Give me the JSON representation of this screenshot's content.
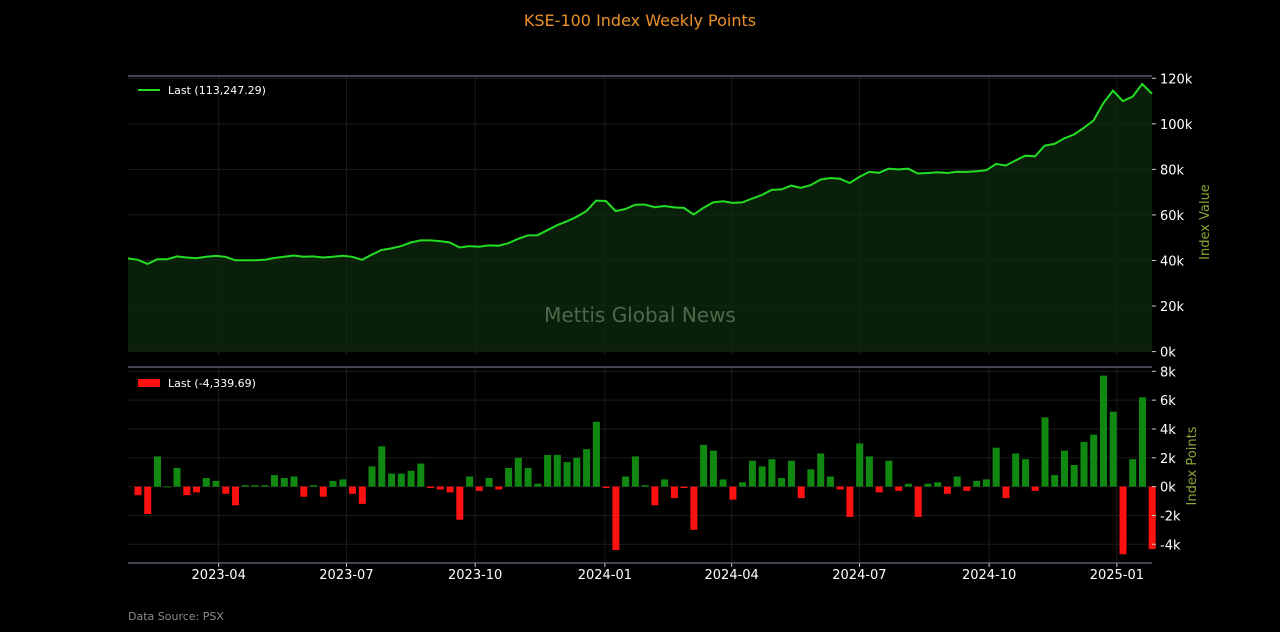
{
  "chart_data": [
    {
      "type": "area",
      "title": "KSE-100 Index Weekly Points",
      "ylabel": "Index Value",
      "legend": "Last (113,247.29)",
      "legend_position": "top-left",
      "watermark": "Mettis Global News",
      "x_ticks": [
        "2023-04",
        "2023-07",
        "2023-10",
        "2024-01",
        "2024-04",
        "2024-07",
        "2024-10",
        "2025-01"
      ],
      "y_ticks": [
        "0k",
        "20k",
        "40k",
        "60k",
        "80k",
        "100k",
        "120k"
      ],
      "ylim": [
        -1500,
        121000
      ],
      "xlim": [
        0,
        105
      ],
      "grid": true,
      "color": "#22dd22",
      "values": [
        40900,
        40300,
        38500,
        40500,
        40500,
        41800,
        41300,
        41000,
        41600,
        42000,
        41600,
        40100,
        40100,
        40100,
        40300,
        41100,
        41600,
        42200,
        41600,
        41800,
        41300,
        41600,
        42100,
        41600,
        40300,
        42600,
        44600,
        45300,
        46300,
        47900,
        48800,
        48800,
        48500,
        47900,
        45700,
        46300,
        46000,
        46600,
        46500,
        47600,
        49500,
        51000,
        51100,
        53300,
        55500,
        57200,
        59200,
        61700,
        66300,
        66100,
        61700,
        62600,
        64500,
        64600,
        63400,
        63900,
        63300,
        63100,
        60200,
        63100,
        65500,
        66000,
        65300,
        65500,
        67200,
        68800,
        71000,
        71200,
        72900,
        71900,
        73100,
        75500,
        76200,
        75900,
        74000,
        76700,
        78900,
        78500,
        80300,
        80000,
        80300,
        78200,
        78400,
        78700,
        78400,
        79000,
        78900,
        79200,
        79600,
        82400,
        81700,
        83900,
        86000,
        85700,
        90400,
        91200,
        93600,
        95300,
        98200,
        101400,
        109000,
        114600,
        110000,
        111900,
        117500,
        113247
      ]
    },
    {
      "type": "bar",
      "ylabel": "Index Points",
      "legend": "Last (-4,339.69)",
      "legend_position": "top-left",
      "x_ticks": [
        "2023-04",
        "2023-07",
        "2023-10",
        "2024-01",
        "2024-04",
        "2024-07",
        "2024-10",
        "2025-01"
      ],
      "y_ticks": [
        "-4k",
        "-2k",
        "0k",
        "2k",
        "4k",
        "6k",
        "8k"
      ],
      "ylim": [
        -5300,
        8300
      ],
      "grid": true,
      "positive_color": "#118811",
      "negative_color": "#ff1111",
      "values": [
        -600,
        -1900,
        2100,
        0,
        1300,
        -600,
        -400,
        600,
        400,
        -500,
        -1300,
        100,
        100,
        100,
        800,
        600,
        700,
        -700,
        100,
        -700,
        400,
        500,
        -500,
        -1200,
        1400,
        2800,
        900,
        900,
        1100,
        1600,
        -100,
        -200,
        -400,
        -2300,
        700,
        -300,
        600,
        -200,
        1300,
        2000,
        1300,
        200,
        2200,
        2200,
        1700,
        2000,
        2600,
        4500,
        -100,
        -4400,
        700,
        2100,
        100,
        -1300,
        500,
        -800,
        -100,
        -3000,
        2900,
        2500,
        500,
        -900,
        300,
        1800,
        1400,
        1900,
        600,
        1800,
        -800,
        1200,
        2300,
        700,
        -200,
        -2100,
        3000,
        2100,
        -400,
        1800,
        -300,
        200,
        -2100,
        200,
        300,
        -500,
        700,
        -300,
        400,
        500,
        2700,
        -800,
        2300,
        1900,
        -300,
        4800,
        800,
        2500,
        1500,
        3100,
        3600,
        7700,
        5200,
        -4700,
        1900,
        6200,
        -4340
      ]
    }
  ],
  "footer": {
    "source": "Data Source: PSX"
  }
}
